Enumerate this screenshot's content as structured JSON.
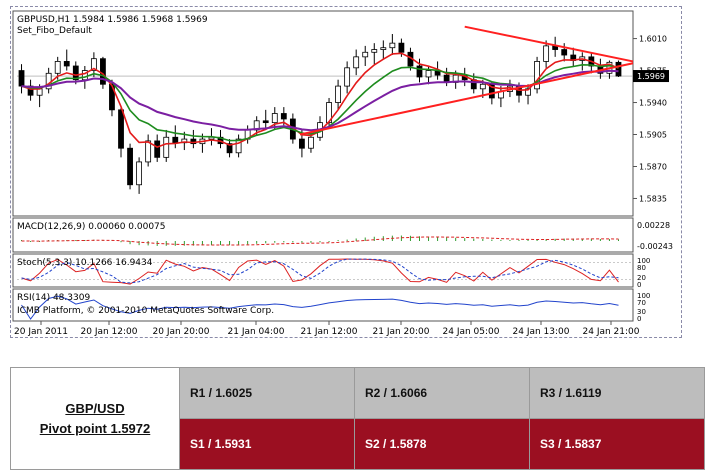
{
  "chart_data": {
    "type": "candlestick",
    "symbol_label": "GBPUSD,H1",
    "ohlc_label": "1.5984 1.5986 1.5968 1.5969",
    "template_label": "Set_Fibo_Default",
    "current_price_label": "1.5969",
    "price_axis_ticks": [
      "1.6010",
      "1.5975",
      "1.5940",
      "1.5905",
      "1.5870",
      "1.5835"
    ],
    "ylim": [
      1.5818,
      1.6038
    ],
    "time_ticks": [
      "20 Jan 2011",
      "20 Jan 12:00",
      "20 Jan 20:00",
      "21 Jan 04:00",
      "21 Jan 12:00",
      "21 Jan 20:00",
      "24 Jan 05:00",
      "24 Jan 13:00",
      "24 Jan 21:00"
    ],
    "candles": [
      [
        1.5975,
        1.5982,
        1.595,
        1.5958
      ],
      [
        1.5958,
        1.5965,
        1.5942,
        1.5948
      ],
      [
        1.5948,
        1.596,
        1.5935,
        1.5955
      ],
      [
        1.5955,
        1.5978,
        1.595,
        1.5972
      ],
      [
        1.5972,
        1.599,
        1.5965,
        1.5985
      ],
      [
        1.5985,
        1.5998,
        1.5975,
        1.598
      ],
      [
        1.598,
        1.5985,
        1.596,
        1.5965
      ],
      [
        1.5965,
        1.598,
        1.5955,
        1.5975
      ],
      [
        1.5975,
        1.5995,
        1.5968,
        1.5988
      ],
      [
        1.5988,
        1.599,
        1.5955,
        1.596
      ],
      [
        1.596,
        1.5965,
        1.5925,
        1.5932
      ],
      [
        1.5932,
        1.5935,
        1.588,
        1.589
      ],
      [
        1.589,
        1.5895,
        1.5845,
        1.585
      ],
      [
        1.585,
        1.588,
        1.584,
        1.5875
      ],
      [
        1.5875,
        1.5905,
        1.587,
        1.5898
      ],
      [
        1.5898,
        1.5905,
        1.5875,
        1.588
      ],
      [
        1.588,
        1.591,
        1.5875,
        1.5902
      ],
      [
        1.5902,
        1.5915,
        1.589,
        1.5896
      ],
      [
        1.5896,
        1.5908,
        1.5888,
        1.59
      ],
      [
        1.59,
        1.591,
        1.589,
        1.5895
      ],
      [
        1.5895,
        1.5906,
        1.5885,
        1.59
      ],
      [
        1.59,
        1.5912,
        1.5893,
        1.5902
      ],
      [
        1.5902,
        1.591,
        1.589,
        1.5895
      ],
      [
        1.5895,
        1.59,
        1.588,
        1.5885
      ],
      [
        1.5885,
        1.5905,
        1.588,
        1.59
      ],
      [
        1.59,
        1.5915,
        1.5895,
        1.591
      ],
      [
        1.591,
        1.5925,
        1.5905,
        1.592
      ],
      [
        1.592,
        1.5932,
        1.5912,
        1.5918
      ],
      [
        1.5918,
        1.5935,
        1.591,
        1.5928
      ],
      [
        1.5928,
        1.5935,
        1.5915,
        1.5922
      ],
      [
        1.5922,
        1.5928,
        1.5895,
        1.59
      ],
      [
        1.59,
        1.591,
        1.588,
        1.589
      ],
      [
        1.589,
        1.5908,
        1.5885,
        1.5902
      ],
      [
        1.5902,
        1.5925,
        1.5898,
        1.5918
      ],
      [
        1.5918,
        1.5945,
        1.5912,
        1.594
      ],
      [
        1.594,
        1.5965,
        1.5932,
        1.5958
      ],
      [
        1.5958,
        1.5985,
        1.595,
        1.5978
      ],
      [
        1.5978,
        1.5998,
        1.597,
        1.599
      ],
      [
        1.599,
        1.6002,
        1.598,
        1.5995
      ],
      [
        1.5995,
        1.6005,
        1.5982,
        1.5998
      ],
      [
        1.5998,
        1.6008,
        1.5988,
        1.6
      ],
      [
        1.6,
        1.6015,
        1.5992,
        1.6005
      ],
      [
        1.6005,
        1.601,
        1.599,
        1.5995
      ],
      [
        1.5995,
        1.6,
        1.5975,
        1.598
      ],
      [
        1.598,
        1.5988,
        1.5962,
        1.5968
      ],
      [
        1.5968,
        1.598,
        1.596,
        1.5975
      ],
      [
        1.5975,
        1.5985,
        1.5965,
        1.597
      ],
      [
        1.597,
        1.5978,
        1.5958,
        1.5962
      ],
      [
        1.5962,
        1.5975,
        1.5955,
        1.597
      ],
      [
        1.597,
        1.5978,
        1.5958,
        1.5965
      ],
      [
        1.5965,
        1.5972,
        1.595,
        1.5955
      ],
      [
        1.5955,
        1.5965,
        1.5945,
        1.596
      ],
      [
        1.596,
        1.5962,
        1.5938,
        1.5945
      ],
      [
        1.5945,
        1.5958,
        1.5935,
        1.5952
      ],
      [
        1.5952,
        1.5965,
        1.5946,
        1.5958
      ],
      [
        1.5958,
        1.5962,
        1.594,
        1.5948
      ],
      [
        1.5948,
        1.596,
        1.5938,
        1.5955
      ],
      [
        1.5955,
        1.599,
        1.595,
        1.5985
      ],
      [
        1.5985,
        1.6008,
        1.5978,
        1.6002
      ],
      [
        1.6002,
        1.6012,
        1.599,
        1.5998
      ],
      [
        1.5998,
        1.6005,
        1.5985,
        1.5992
      ],
      [
        1.5992,
        1.6,
        1.598,
        1.5986
      ],
      [
        1.5986,
        1.5995,
        1.5975,
        1.599
      ],
      [
        1.599,
        1.5995,
        1.5972,
        1.598
      ],
      [
        1.598,
        1.5988,
        1.5966,
        1.5972
      ],
      [
        1.5972,
        1.5986,
        1.5966,
        1.5984
      ],
      [
        1.5984,
        1.5986,
        1.5968,
        1.5969
      ]
    ],
    "indicators": [
      {
        "label": "MACD(12,26,9) 0.00060 0.00075",
        "axis_ticks": [
          "0.00228",
          "-0.00243"
        ]
      },
      {
        "label": "Stoch(5,3,3) 10.1266 16.9434",
        "axis_ticks": [
          "100",
          "80",
          "20",
          "0"
        ]
      },
      {
        "label": "RSI(14) 48.3309",
        "axis_ticks": [
          "100",
          "70",
          "30",
          "0"
        ]
      }
    ],
    "watermark": "ICMB Platform, © 2001-2010 MetaQuotes Software Corp.",
    "colors": {
      "ma_fast": "#e41a1a",
      "ma_mid": "#1e8c1e",
      "ma_slow": "#7b1fa2",
      "trendline": "#ff2020"
    }
  },
  "pivot": {
    "pair": "GBP/USD",
    "pivot_text": "Pivot point 1.5972",
    "r1": "R1 / 1.6025",
    "r2": "R2 / 1.6066",
    "r3": "R3 / 1.6119",
    "s1": "S1 / 1.5931",
    "s2": "S2 / 1.5878",
    "s3": "S3 / 1.5837"
  }
}
